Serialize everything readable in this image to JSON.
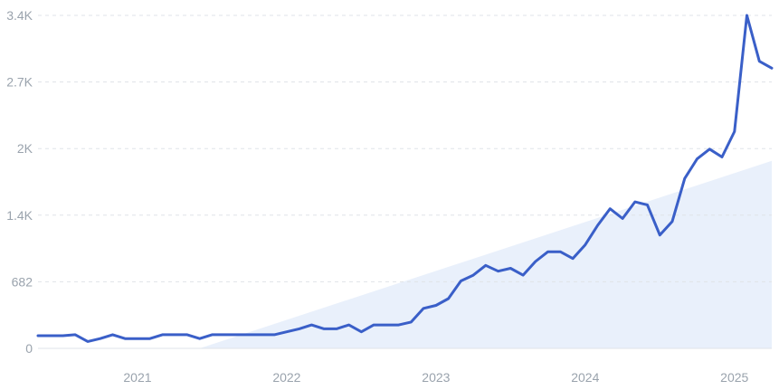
{
  "chart_data": {
    "type": "line",
    "title": "",
    "xlabel": "",
    "ylabel": "",
    "y_ticks": [
      {
        "value": 0,
        "label": "0"
      },
      {
        "value": 682,
        "label": "682"
      },
      {
        "value": 1364,
        "label": "1.4K"
      },
      {
        "value": 2046,
        "label": "2K"
      },
      {
        "value": 2728,
        "label": "2.7K"
      },
      {
        "value": 3410,
        "label": "3.4K"
      }
    ],
    "ylim": [
      0,
      3410
    ],
    "x_ticks": [
      {
        "value": "2021-01",
        "label": "2021"
      },
      {
        "value": "2022-01",
        "label": "2022"
      },
      {
        "value": "2023-01",
        "label": "2023"
      },
      {
        "value": "2024-01",
        "label": "2024"
      },
      {
        "value": "2025-01",
        "label": "2025"
      }
    ],
    "xlim": [
      "2020-05",
      "2025-04"
    ],
    "grid": true,
    "trend_area": {
      "start": [
        "2021-06",
        0
      ],
      "end": [
        "2025-04",
        1920
      ]
    },
    "colors": {
      "line": "#3a5fc8",
      "trend_fill": "#e9f0fb",
      "grid": "#dfe3e8",
      "tick_text": "#9aa3ad"
    },
    "series": [
      {
        "x": [
          "2020-05",
          "2020-06",
          "2020-07",
          "2020-08",
          "2020-09",
          "2020-10",
          "2020-11",
          "2020-12",
          "2021-01",
          "2021-02",
          "2021-03",
          "2021-04",
          "2021-05",
          "2021-06",
          "2021-07",
          "2021-08",
          "2021-09",
          "2021-10",
          "2021-11",
          "2021-12",
          "2022-01",
          "2022-02",
          "2022-03",
          "2022-04",
          "2022-05",
          "2022-06",
          "2022-07",
          "2022-08",
          "2022-09",
          "2022-10",
          "2022-11",
          "2022-12",
          "2023-01",
          "2023-02",
          "2023-03",
          "2023-04",
          "2023-05",
          "2023-06",
          "2023-07",
          "2023-08",
          "2023-09",
          "2023-10",
          "2023-11",
          "2023-12",
          "2024-01",
          "2024-02",
          "2024-03",
          "2024-04",
          "2024-05",
          "2024-06",
          "2024-07",
          "2024-08",
          "2024-09",
          "2024-10",
          "2024-11",
          "2024-12",
          "2025-01",
          "2025-02",
          "2025-03",
          "2025-04"
        ],
        "y": [
          130,
          130,
          130,
          140,
          70,
          100,
          140,
          100,
          100,
          100,
          140,
          140,
          140,
          100,
          140,
          140,
          140,
          140,
          140,
          140,
          170,
          200,
          240,
          200,
          200,
          240,
          170,
          240,
          240,
          240,
          270,
          410,
          440,
          510,
          690,
          750,
          850,
          790,
          820,
          750,
          890,
          990,
          990,
          920,
          1060,
          1260,
          1430,
          1330,
          1500,
          1470,
          1160,
          1300,
          1740,
          1940,
          2040,
          1960,
          2220,
          3410,
          2940,
          2870
        ]
      }
    ]
  }
}
